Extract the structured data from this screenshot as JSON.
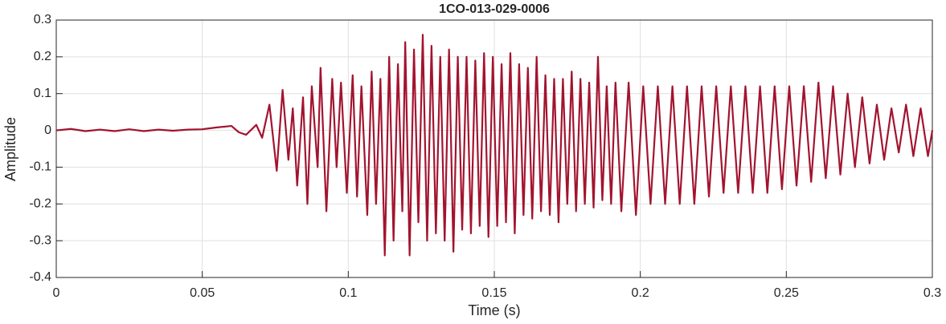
{
  "chart_data": {
    "type": "line",
    "title": "1CO-013-029-0006",
    "x_label": "Time (s)",
    "y_label": "Amplitude",
    "xlim": [
      0,
      0.3
    ],
    "xticks": [
      0,
      0.05,
      0.1,
      0.15,
      0.2,
      0.25,
      0.3
    ],
    "ylim": [
      -0.4,
      0.3
    ],
    "yticks": [
      -0.4,
      -0.3,
      -0.2,
      -0.1,
      0,
      0.1,
      0.2,
      0.3
    ],
    "grid": true,
    "x": [
      0,
      0.005,
      0.01,
      0.015,
      0.02,
      0.025,
      0.03,
      0.035,
      0.04,
      0.045,
      0.05,
      0.055,
      0.06,
      0.0625,
      0.065,
      0.0685,
      0.0705,
      0.073,
      0.0755,
      0.0775,
      0.0795,
      0.081,
      0.0825,
      0.0845,
      0.086,
      0.0875,
      0.0895,
      0.0905,
      0.0925,
      0.0945,
      0.096,
      0.0975,
      0.0995,
      0.1015,
      0.103,
      0.1045,
      0.1065,
      0.108,
      0.1095,
      0.111,
      0.1125,
      0.114,
      0.1155,
      0.117,
      0.1185,
      0.1195,
      0.121,
      0.1225,
      0.124,
      0.1255,
      0.127,
      0.1285,
      0.13,
      0.1315,
      0.133,
      0.1345,
      0.136,
      0.1375,
      0.139,
      0.1405,
      0.142,
      0.1435,
      0.145,
      0.1465,
      0.148,
      0.1495,
      0.151,
      0.1525,
      0.154,
      0.1555,
      0.157,
      0.1585,
      0.16,
      0.1615,
      0.163,
      0.1645,
      0.166,
      0.1675,
      0.169,
      0.1705,
      0.172,
      0.1735,
      0.175,
      0.1765,
      0.178,
      0.1795,
      0.181,
      0.1825,
      0.184,
      0.1855,
      0.187,
      0.1885,
      0.19,
      0.1915,
      0.1935,
      0.196,
      0.1985,
      0.201,
      0.2035,
      0.206,
      0.2085,
      0.211,
      0.2135,
      0.216,
      0.2185,
      0.221,
      0.2235,
      0.226,
      0.2285,
      0.231,
      0.2335,
      0.236,
      0.2385,
      0.241,
      0.2435,
      0.246,
      0.2485,
      0.251,
      0.2535,
      0.256,
      0.2585,
      0.261,
      0.2635,
      0.266,
      0.2685,
      0.271,
      0.2735,
      0.276,
      0.2785,
      0.281,
      0.2835,
      0.286,
      0.2885,
      0.291,
      0.2935,
      0.296,
      0.2985,
      0.3
    ],
    "series": [
      {
        "name": "Amplitude",
        "color": "#a2142f",
        "values": [
          0,
          0.004,
          -0.002,
          0.002,
          -0.002,
          0.003,
          -0.002,
          0.002,
          -0.001,
          0.002,
          0.003,
          0.008,
          0.012,
          -0.005,
          -0.012,
          0.015,
          -0.02,
          0.07,
          -0.11,
          0.11,
          -0.08,
          0.06,
          -0.15,
          0.09,
          -0.2,
          0.12,
          -0.1,
          0.17,
          -0.22,
          0.14,
          -0.1,
          0.13,
          -0.17,
          0.15,
          -0.18,
          0.12,
          -0.23,
          0.16,
          -0.2,
          0.14,
          -0.34,
          0.2,
          -0.3,
          0.18,
          -0.22,
          0.24,
          -0.34,
          0.22,
          -0.25,
          0.26,
          -0.3,
          0.23,
          -0.28,
          0.2,
          -0.3,
          0.22,
          -0.33,
          0.2,
          -0.27,
          0.2,
          -0.28,
          0.19,
          -0.26,
          0.21,
          -0.29,
          0.2,
          -0.26,
          0.18,
          -0.25,
          0.21,
          -0.28,
          0.18,
          -0.23,
          0.17,
          -0.24,
          0.2,
          -0.22,
          0.15,
          -0.23,
          0.14,
          -0.25,
          0.14,
          -0.2,
          0.16,
          -0.22,
          0.14,
          -0.2,
          0.13,
          -0.21,
          0.2,
          -0.19,
          0.12,
          -0.2,
          0.13,
          -0.22,
          0.13,
          -0.23,
          0.12,
          -0.2,
          0.12,
          -0.2,
          0.12,
          -0.2,
          0.12,
          -0.2,
          0.12,
          -0.18,
          0.12,
          -0.17,
          0.12,
          -0.17,
          0.12,
          -0.17,
          0.12,
          -0.17,
          0.12,
          -0.16,
          0.12,
          -0.15,
          0.12,
          -0.14,
          0.13,
          -0.13,
          0.12,
          -0.12,
          0.1,
          -0.1,
          0.09,
          -0.09,
          0.07,
          -0.08,
          0.06,
          -0.06,
          0.07,
          -0.07,
          0.06,
          -0.07,
          0
        ]
      }
    ]
  }
}
